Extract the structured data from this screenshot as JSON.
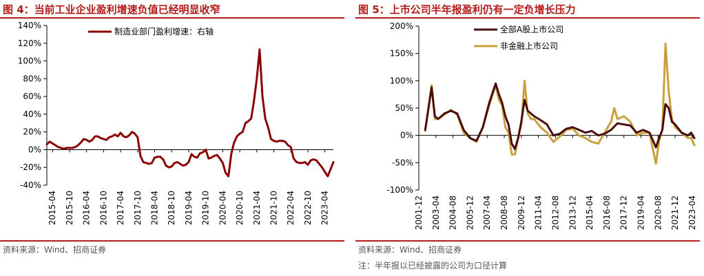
{
  "figures": [
    {
      "title": "图 4：当前工业企业盈利增速负值已经明显收窄",
      "source": "资料来源：Wind、招商证券",
      "chart_data": {
        "type": "line",
        "y_tick_labels": [
          "140%",
          "120%",
          "100%",
          "80%",
          "60%",
          "40%",
          "20%",
          "0%",
          "-20%",
          "-40%"
        ],
        "x_tick_labels": [
          "2015-04",
          "2015-10",
          "2016-04",
          "2016-10",
          "2017-04",
          "2017-10",
          "2018-04",
          "2018-10",
          "2019-04",
          "2019-10",
          "2020-04",
          "2020-10",
          "2021-04",
          "2021-10",
          "2022-04",
          "2022-10",
          "2023-04"
        ],
        "ylim": [
          -40,
          140
        ],
        "x_range": [
          "2015-02",
          "2023-07"
        ],
        "grid": false,
        "legend_position": "top-center",
        "series": [
          {
            "name": "制造业部门盈利增速：右轴",
            "color": "#8b0000",
            "points": [
              [
                "2015-02",
                6
              ],
              [
                "2015-03",
                9
              ],
              [
                "2015-04",
                7
              ],
              [
                "2015-05",
                5
              ],
              [
                "2015-06",
                3
              ],
              [
                "2015-07",
                2
              ],
              [
                "2015-08",
                1
              ],
              [
                "2015-09",
                2
              ],
              [
                "2015-10",
                2
              ],
              [
                "2015-11",
                2
              ],
              [
                "2015-12",
                3
              ],
              [
                "2016-01",
                5
              ],
              [
                "2016-02",
                8
              ],
              [
                "2016-03",
                12
              ],
              [
                "2016-04",
                11
              ],
              [
                "2016-05",
                9
              ],
              [
                "2016-06",
                11
              ],
              [
                "2016-07",
                15
              ],
              [
                "2016-08",
                15
              ],
              [
                "2016-09",
                13
              ],
              [
                "2016-10",
                12
              ],
              [
                "2016-11",
                11
              ],
              [
                "2016-12",
                14
              ],
              [
                "2017-01",
                15
              ],
              [
                "2017-02",
                17
              ],
              [
                "2017-03",
                15
              ],
              [
                "2017-04",
                19
              ],
              [
                "2017-05",
                15
              ],
              [
                "2017-06",
                14
              ],
              [
                "2017-07",
                16
              ],
              [
                "2017-08",
                20
              ],
              [
                "2017-09",
                18
              ],
              [
                "2017-10",
                14
              ],
              [
                "2017-11",
                -7
              ],
              [
                "2017-12",
                -14
              ],
              [
                "2018-01",
                -15
              ],
              [
                "2018-02",
                -16
              ],
              [
                "2018-03",
                -15
              ],
              [
                "2018-04",
                -9
              ],
              [
                "2018-05",
                -8
              ],
              [
                "2018-06",
                -8
              ],
              [
                "2018-07",
                -11
              ],
              [
                "2018-08",
                -18
              ],
              [
                "2018-09",
                -20
              ],
              [
                "2018-10",
                -19
              ],
              [
                "2018-11",
                -15
              ],
              [
                "2018-12",
                -14
              ],
              [
                "2019-01",
                -16
              ],
              [
                "2019-02",
                -18
              ],
              [
                "2019-03",
                -17
              ],
              [
                "2019-04",
                -14
              ],
              [
                "2019-05",
                -5
              ],
              [
                "2019-06",
                -8
              ],
              [
                "2019-07",
                -9
              ],
              [
                "2019-08",
                -4
              ],
              [
                "2019-09",
                -3
              ],
              [
                "2019-10",
                0
              ],
              [
                "2019-11",
                -10
              ],
              [
                "2019-12",
                -9
              ],
              [
                "2020-01",
                -7
              ],
              [
                "2020-02",
                -6
              ],
              [
                "2020-03",
                -10
              ],
              [
                "2020-04",
                -15
              ],
              [
                "2020-05",
                -26
              ],
              [
                "2020-06",
                -30
              ],
              [
                "2020-07",
                -5
              ],
              [
                "2020-08",
                8
              ],
              [
                "2020-09",
                15
              ],
              [
                "2020-10",
                18
              ],
              [
                "2020-11",
                20
              ],
              [
                "2020-12",
                30
              ],
              [
                "2021-01",
                32
              ],
              [
                "2021-02",
                35
              ],
              [
                "2021-03",
                55
              ],
              [
                "2021-04",
                80
              ],
              [
                "2021-05",
                113
              ],
              [
                "2021-06",
                60
              ],
              [
                "2021-07",
                35
              ],
              [
                "2021-08",
                25
              ],
              [
                "2021-09",
                12
              ],
              [
                "2021-10",
                10
              ],
              [
                "2021-11",
                9
              ],
              [
                "2021-12",
                10
              ],
              [
                "2022-01",
                10
              ],
              [
                "2022-02",
                9
              ],
              [
                "2022-03",
                5
              ],
              [
                "2022-04",
                3
              ],
              [
                "2022-05",
                -10
              ],
              [
                "2022-06",
                -14
              ],
              [
                "2022-07",
                -15
              ],
              [
                "2022-08",
                -15
              ],
              [
                "2022-09",
                -14
              ],
              [
                "2022-10",
                -17
              ],
              [
                "2022-11",
                -12
              ],
              [
                "2022-12",
                -11
              ],
              [
                "2023-01",
                -12
              ],
              [
                "2023-02",
                -16
              ],
              [
                "2023-03",
                -20
              ],
              [
                "2023-04",
                -25
              ],
              [
                "2023-05",
                -30
              ],
              [
                "2023-06",
                -22
              ],
              [
                "2023-07",
                -14
              ]
            ]
          }
        ]
      }
    },
    {
      "title": "图 5：上市公司半年报盈利仍有一定负增长压力",
      "source": "资料来源：Wind、招商证券",
      "note": "注：半年报以已经披露的公司为口径计算",
      "chart_data": {
        "type": "line",
        "y_tick_labels": [
          "200%",
          "150%",
          "100%",
          "50%",
          "0%",
          "-50%",
          "-100%"
        ],
        "x_tick_labels": [
          "2001-12",
          "2003-04",
          "2004-08",
          "2005-12",
          "2007-04",
          "2008-08",
          "2009-12",
          "2011-04",
          "2012-08",
          "2013-12",
          "2015-04",
          "2016-08",
          "2017-12",
          "2019-04",
          "2020-08",
          "2021-12",
          "2023-04"
        ],
        "ylim": [
          -100,
          200
        ],
        "x_range": [
          "2001-12",
          "2023-06"
        ],
        "grid": false,
        "legend_position": "top-left",
        "series": [
          {
            "name": "全部A股上市公司",
            "color": "#4a0d0d",
            "points": [
              [
                "2002-06",
                10
              ],
              [
                "2002-12",
                88
              ],
              [
                "2003-03",
                35
              ],
              [
                "2003-06",
                30
              ],
              [
                "2003-12",
                40
              ],
              [
                "2004-06",
                45
              ],
              [
                "2004-12",
                40
              ],
              [
                "2005-06",
                10
              ],
              [
                "2005-12",
                -5
              ],
              [
                "2006-06",
                -10
              ],
              [
                "2006-12",
                15
              ],
              [
                "2007-06",
                60
              ],
              [
                "2007-12",
                95
              ],
              [
                "2008-03",
                75
              ],
              [
                "2008-06",
                60
              ],
              [
                "2008-09",
                35
              ],
              [
                "2008-12",
                20
              ],
              [
                "2009-03",
                -15
              ],
              [
                "2009-06",
                -25
              ],
              [
                "2009-09",
                -5
              ],
              [
                "2009-12",
                25
              ],
              [
                "2010-03",
                65
              ],
              [
                "2010-06",
                45
              ],
              [
                "2010-09",
                40
              ],
              [
                "2010-12",
                35
              ],
              [
                "2011-06",
                28
              ],
              [
                "2011-12",
                20
              ],
              [
                "2012-06",
                0
              ],
              [
                "2012-12",
                3
              ],
              [
                "2013-06",
                12
              ],
              [
                "2013-12",
                15
              ],
              [
                "2014-06",
                10
              ],
              [
                "2014-12",
                5
              ],
              [
                "2015-06",
                8
              ],
              [
                "2015-12",
                0
              ],
              [
                "2016-06",
                3
              ],
              [
                "2016-12",
                10
              ],
              [
                "2017-06",
                22
              ],
              [
                "2017-12",
                20
              ],
              [
                "2018-06",
                18
              ],
              [
                "2018-12",
                5
              ],
              [
                "2019-06",
                10
              ],
              [
                "2019-12",
                5
              ],
              [
                "2020-06",
                -22
              ],
              [
                "2020-09",
                -5
              ],
              [
                "2020-12",
                10
              ],
              [
                "2021-03",
                57
              ],
              [
                "2021-06",
                50
              ],
              [
                "2021-09",
                25
              ],
              [
                "2021-12",
                20
              ],
              [
                "2022-06",
                5
              ],
              [
                "2022-12",
                0
              ],
              [
                "2023-03",
                5
              ],
              [
                "2023-06",
                -5
              ]
            ]
          },
          {
            "name": "非金融上市公司",
            "color": "#c8a03c",
            "points": [
              [
                "2002-06",
                8
              ],
              [
                "2002-12",
                92
              ],
              [
                "2003-03",
                30
              ],
              [
                "2003-06",
                30
              ],
              [
                "2003-12",
                38
              ],
              [
                "2004-06",
                47
              ],
              [
                "2004-12",
                38
              ],
              [
                "2005-06",
                5
              ],
              [
                "2005-12",
                -5
              ],
              [
                "2006-06",
                -12
              ],
              [
                "2006-12",
                15
              ],
              [
                "2007-06",
                55
              ],
              [
                "2007-12",
                92
              ],
              [
                "2008-03",
                65
              ],
              [
                "2008-06",
                55
              ],
              [
                "2008-09",
                15
              ],
              [
                "2008-12",
                5
              ],
              [
                "2009-03",
                -35
              ],
              [
                "2009-06",
                -35
              ],
              [
                "2009-09",
                -5
              ],
              [
                "2009-12",
                20
              ],
              [
                "2010-03",
                100
              ],
              [
                "2010-06",
                40
              ],
              [
                "2010-09",
                30
              ],
              [
                "2010-12",
                30
              ],
              [
                "2011-06",
                15
              ],
              [
                "2011-12",
                5
              ],
              [
                "2012-06",
                -12
              ],
              [
                "2012-12",
                -2
              ],
              [
                "2013-06",
                10
              ],
              [
                "2013-12",
                12
              ],
              [
                "2014-06",
                0
              ],
              [
                "2014-12",
                -5
              ],
              [
                "2015-06",
                -12
              ],
              [
                "2015-12",
                -15
              ],
              [
                "2016-06",
                5
              ],
              [
                "2016-12",
                25
              ],
              [
                "2017-03",
                50
              ],
              [
                "2017-06",
                30
              ],
              [
                "2017-12",
                35
              ],
              [
                "2018-06",
                25
              ],
              [
                "2018-12",
                0
              ],
              [
                "2019-06",
                5
              ],
              [
                "2019-12",
                5
              ],
              [
                "2020-06",
                -52
              ],
              [
                "2020-09",
                -10
              ],
              [
                "2020-12",
                10
              ],
              [
                "2021-03",
                168
              ],
              [
                "2021-06",
                80
              ],
              [
                "2021-09",
                30
              ],
              [
                "2021-12",
                15
              ],
              [
                "2022-06",
                5
              ],
              [
                "2022-12",
                -5
              ],
              [
                "2023-03",
                -5
              ],
              [
                "2023-06",
                -18
              ]
            ]
          }
        ]
      }
    }
  ]
}
